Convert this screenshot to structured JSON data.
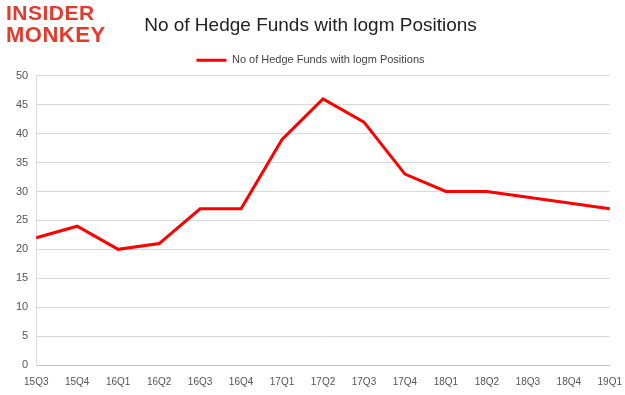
{
  "chart_data": {
    "type": "line",
    "title": "No of Hedge Funds with logm Positions",
    "annotations": [
      "INSIDER",
      "MONKEY"
    ],
    "categories": [
      "15Q3",
      "15Q4",
      "16Q1",
      "16Q2",
      "16Q3",
      "16Q4",
      "17Q1",
      "17Q2",
      "17Q3",
      "17Q4",
      "18Q1",
      "18Q2",
      "18Q3",
      "18Q4",
      "19Q1"
    ],
    "series": [
      {
        "name": "No of Hedge Funds with logm Positions",
        "color": "#ff0000",
        "values": [
          22,
          24,
          20,
          21,
          27,
          27,
          39,
          46,
          42,
          33,
          30,
          30,
          29,
          28,
          27
        ]
      }
    ],
    "ylim": [
      0,
      50
    ],
    "yticks": [
      0,
      5,
      10,
      15,
      20,
      25,
      30,
      35,
      40,
      45,
      50
    ],
    "grid": true,
    "legend": "top"
  }
}
